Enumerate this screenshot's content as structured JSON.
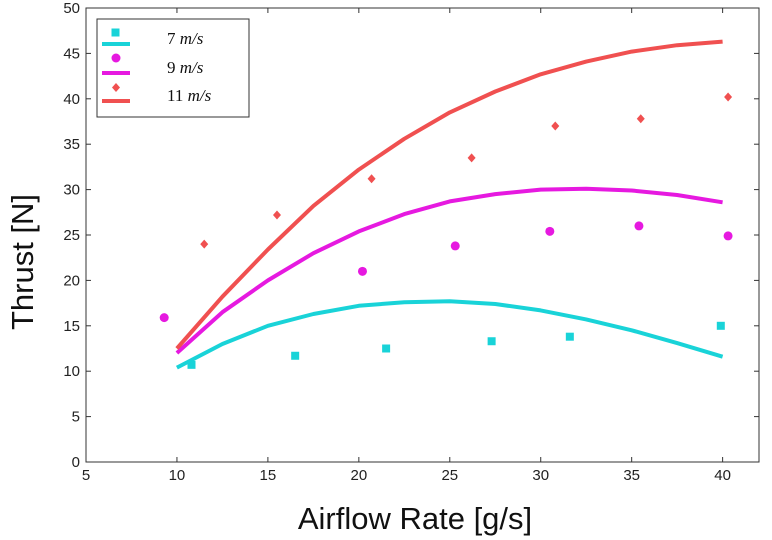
{
  "chart_data": {
    "type": "scatter",
    "title": "",
    "xlabel": "Airflow Rate [g/s]",
    "ylabel": "Thrust [N]",
    "xlim": [
      5,
      42
    ],
    "ylim": [
      0,
      50
    ],
    "xticks": [
      5,
      10,
      15,
      20,
      25,
      30,
      35,
      40
    ],
    "yticks": [
      0,
      5,
      10,
      15,
      20,
      25,
      30,
      35,
      40,
      45,
      50
    ],
    "grid": false,
    "legend_position": "top-left",
    "series": [
      {
        "name": "7 m/s",
        "speed": "7",
        "unit": "m/s",
        "color": "#19d3d8",
        "marker": "square",
        "points": [
          {
            "x": 10.8,
            "y": 10.7
          },
          {
            "x": 16.5,
            "y": 11.7
          },
          {
            "x": 21.5,
            "y": 12.5
          },
          {
            "x": 27.3,
            "y": 13.3
          },
          {
            "x": 31.6,
            "y": 13.8
          },
          {
            "x": 39.9,
            "y": 15.0
          }
        ],
        "fit": [
          {
            "x": 10,
            "y": 10.4
          },
          {
            "x": 12.5,
            "y": 13.0
          },
          {
            "x": 15,
            "y": 15.0
          },
          {
            "x": 17.5,
            "y": 16.3
          },
          {
            "x": 20,
            "y": 17.2
          },
          {
            "x": 22.5,
            "y": 17.6
          },
          {
            "x": 25,
            "y": 17.7
          },
          {
            "x": 27.5,
            "y": 17.4
          },
          {
            "x": 30,
            "y": 16.7
          },
          {
            "x": 32.5,
            "y": 15.7
          },
          {
            "x": 35,
            "y": 14.5
          },
          {
            "x": 37.5,
            "y": 13.1
          },
          {
            "x": 40,
            "y": 11.6
          }
        ]
      },
      {
        "name": "9 m/s",
        "speed": "9",
        "unit": "m/s",
        "color": "#e619e0",
        "marker": "circle",
        "points": [
          {
            "x": 9.3,
            "y": 15.9
          },
          {
            "x": 20.2,
            "y": 21.0
          },
          {
            "x": 25.3,
            "y": 23.8
          },
          {
            "x": 30.5,
            "y": 25.4
          },
          {
            "x": 35.4,
            "y": 26.0
          },
          {
            "x": 40.3,
            "y": 24.9
          }
        ],
        "fit": [
          {
            "x": 10,
            "y": 12.0
          },
          {
            "x": 12.5,
            "y": 16.5
          },
          {
            "x": 15,
            "y": 20.0
          },
          {
            "x": 17.5,
            "y": 23.0
          },
          {
            "x": 20,
            "y": 25.4
          },
          {
            "x": 22.5,
            "y": 27.3
          },
          {
            "x": 25,
            "y": 28.7
          },
          {
            "x": 27.5,
            "y": 29.5
          },
          {
            "x": 30,
            "y": 30.0
          },
          {
            "x": 32.5,
            "y": 30.1
          },
          {
            "x": 35,
            "y": 29.9
          },
          {
            "x": 37.5,
            "y": 29.4
          },
          {
            "x": 40,
            "y": 28.6
          }
        ]
      },
      {
        "name": "11 m/s",
        "speed": "11",
        "unit": "m/s",
        "color": "#f05050",
        "marker": "diamond",
        "points": [
          {
            "x": 11.5,
            "y": 24.0
          },
          {
            "x": 15.5,
            "y": 27.2
          },
          {
            "x": 20.7,
            "y": 31.2
          },
          {
            "x": 26.2,
            "y": 33.5
          },
          {
            "x": 30.8,
            "y": 37.0
          },
          {
            "x": 35.5,
            "y": 37.8
          },
          {
            "x": 40.3,
            "y": 40.2
          }
        ],
        "fit": [
          {
            "x": 10,
            "y": 12.5
          },
          {
            "x": 12.5,
            "y": 18.2
          },
          {
            "x": 15,
            "y": 23.4
          },
          {
            "x": 17.5,
            "y": 28.2
          },
          {
            "x": 20,
            "y": 32.2
          },
          {
            "x": 22.5,
            "y": 35.6
          },
          {
            "x": 25,
            "y": 38.5
          },
          {
            "x": 27.5,
            "y": 40.8
          },
          {
            "x": 30,
            "y": 42.7
          },
          {
            "x": 32.5,
            "y": 44.1
          },
          {
            "x": 35,
            "y": 45.2
          },
          {
            "x": 37.5,
            "y": 45.9
          },
          {
            "x": 40,
            "y": 46.3
          }
        ]
      }
    ]
  }
}
